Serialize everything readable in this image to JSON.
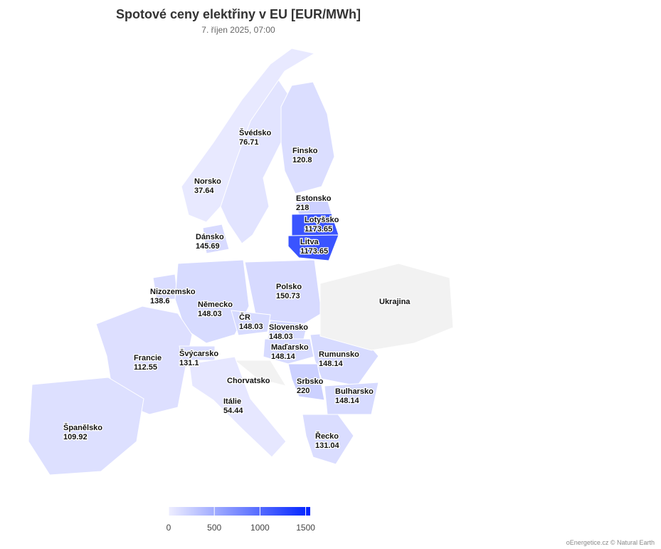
{
  "title": "Spotové ceny elektřiny v EU [EUR/MWh]",
  "subtitle": "7. říjen 2025, 07:00",
  "countries": [
    {
      "name": "Švédsko",
      "value": 76.71
    },
    {
      "name": "Finsko",
      "value": 120.8
    },
    {
      "name": "Norsko",
      "value": 37.64
    },
    {
      "name": "Estonsko",
      "value": 218
    },
    {
      "name": "Lotyšsko",
      "value": 1173.65
    },
    {
      "name": "Litva",
      "value": 1173.65
    },
    {
      "name": "Dánsko",
      "value": 145.69
    },
    {
      "name": "Nizozemsko",
      "value": 138.6
    },
    {
      "name": "Německo",
      "value": 148.03
    },
    {
      "name": "Polsko",
      "value": 150.73
    },
    {
      "name": "ČR",
      "value": 148.03
    },
    {
      "name": "Slovensko",
      "value": 148.03
    },
    {
      "name": "Maďarsko",
      "value": 148.14
    },
    {
      "name": "Rumunsko",
      "value": 148.14
    },
    {
      "name": "Francie",
      "value": 112.55
    },
    {
      "name": "Švýcarsko",
      "value": 131.1
    },
    {
      "name": "Chorvatsko"
    },
    {
      "name": "Srbsko",
      "value": 220
    },
    {
      "name": "Bulharsko",
      "value": 148.14
    },
    {
      "name": "Itálie",
      "value": 54.44
    },
    {
      "name": "Španělsko",
      "value": 109.92
    },
    {
      "name": "Řecko",
      "value": 131.04
    },
    {
      "name": "Ukrajina"
    }
  ],
  "colorscale": {
    "colors": [
      "#eeeeff",
      "#0022ff"
    ],
    "lim": [
      0,
      1550
    ],
    "ticks": [
      0,
      500,
      1000,
      1500
    ]
  },
  "credit": "oEnergetice.cz © Natural Earth"
}
